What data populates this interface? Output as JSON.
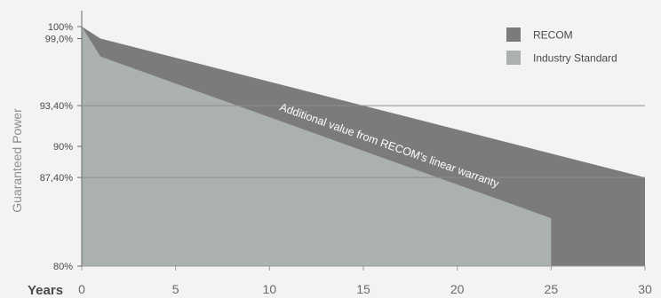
{
  "chart_data": {
    "type": "area",
    "xlabel": "Years",
    "ylabel": "Guaranteed Power",
    "x_ticks": [
      "0",
      "5",
      "10",
      "15",
      "20",
      "25",
      "30"
    ],
    "y_ticks": [
      "100%",
      "99,0%",
      "93,40%",
      "90%",
      "87,40%",
      "80%"
    ],
    "y_tick_values": [
      100,
      99.0,
      93.4,
      90,
      87.4,
      80
    ],
    "xlim": [
      0,
      30
    ],
    "ylim": [
      80,
      100
    ],
    "grid": "horizontal at 93,40% and 87,40%",
    "legend_position": "top-right",
    "annotation": "Additional value from RECOM's linear warranty",
    "series": [
      {
        "name": "RECOM",
        "color": "#7b7b7b",
        "x": [
          0,
          1,
          30
        ],
        "y": [
          100,
          99.0,
          87.4
        ]
      },
      {
        "name": "Industry Standard",
        "color": "#abb1b1",
        "x": [
          0,
          1,
          25,
          25
        ],
        "y": [
          100,
          97.5,
          84.0,
          80
        ]
      }
    ]
  }
}
